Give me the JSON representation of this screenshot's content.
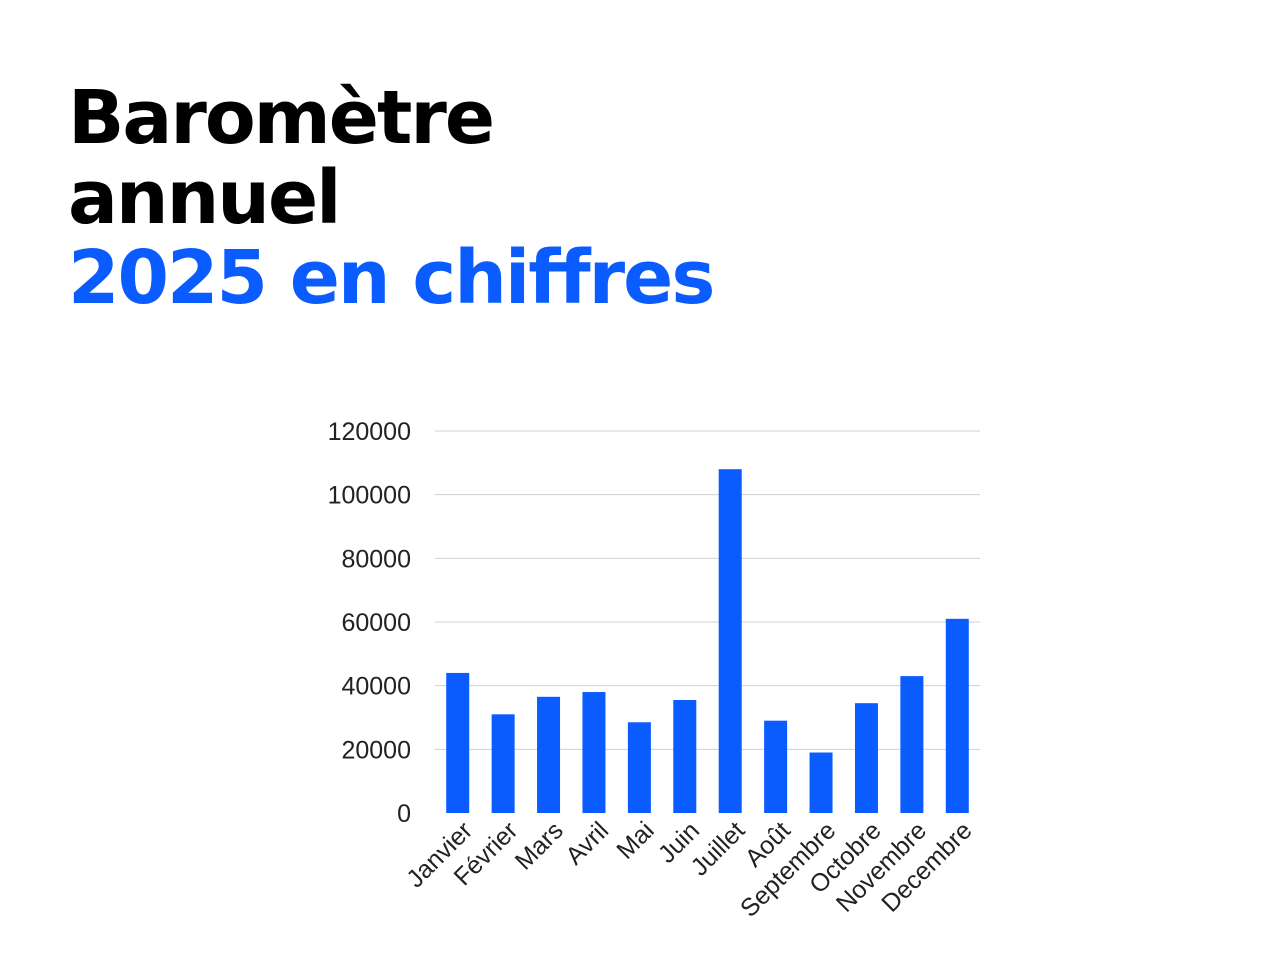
{
  "heading": {
    "line1": "Baromètre",
    "line2": "annuel",
    "line3": "2025 en chiffres"
  },
  "colors": {
    "accent": "#0a5cff",
    "bar": "#0a5cff",
    "text": "#000000",
    "grid": "#d0d0d0"
  },
  "chart_data": {
    "type": "bar",
    "title": "",
    "xlabel": "",
    "ylabel": "",
    "categories": [
      "Janvier",
      "Février",
      "Mars",
      "Avril",
      "Mai",
      "Juin",
      "Juillet",
      "Août",
      "Septembre",
      "Octobre",
      "Novembre",
      "Decembre"
    ],
    "values": [
      44000,
      31000,
      36500,
      38000,
      28500,
      35500,
      108000,
      29000,
      19000,
      34500,
      43000,
      61000
    ],
    "ylim": [
      0,
      120000
    ],
    "yticks": [
      0,
      20000,
      40000,
      60000,
      80000,
      100000,
      120000
    ],
    "grid": true,
    "legend": "none"
  }
}
